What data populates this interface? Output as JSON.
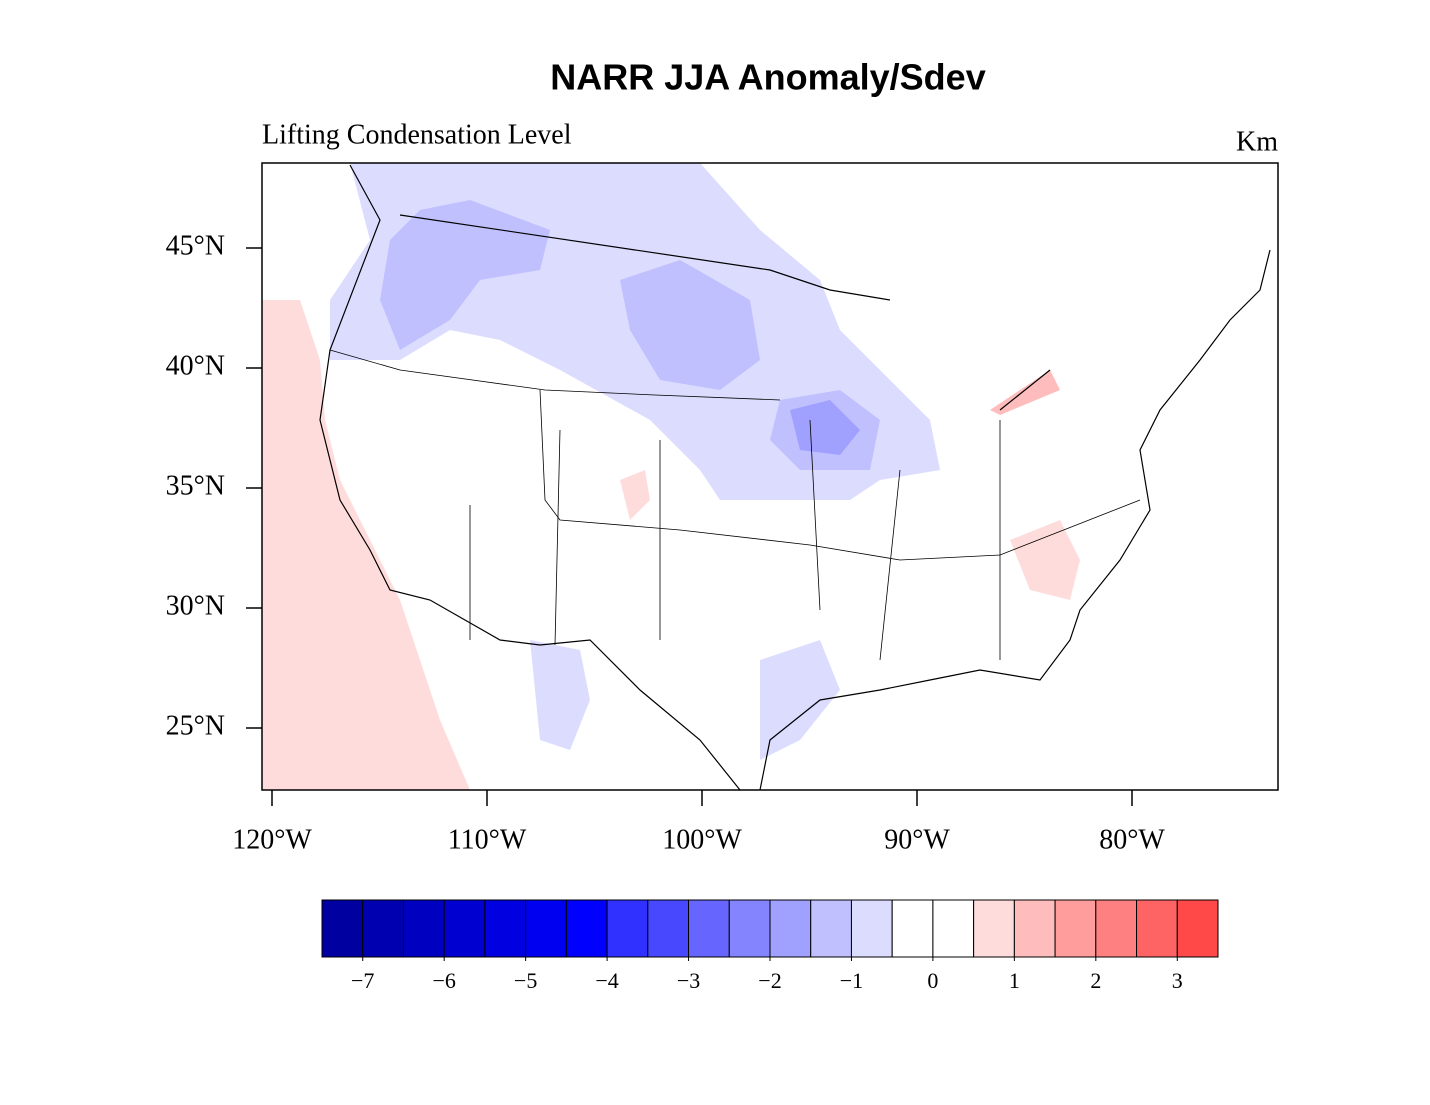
{
  "title": "NARR JJA Anomaly/Sdev",
  "subtitle": "Lifting Condensation Level",
  "units": "Km",
  "lat_ticks": [
    {
      "value": 45,
      "label": "45°N"
    },
    {
      "value": 40,
      "label": "40°N"
    },
    {
      "value": 35,
      "label": "35°N"
    },
    {
      "value": 30,
      "label": "30°N"
    },
    {
      "value": 25,
      "label": "25°N"
    }
  ],
  "lon_ticks": [
    {
      "value": -120,
      "label": "120°W"
    },
    {
      "value": -110,
      "label": "110°W"
    },
    {
      "value": -100,
      "label": "100°W"
    },
    {
      "value": -90,
      "label": "90°W"
    },
    {
      "value": -80,
      "label": "80°W"
    }
  ],
  "colorbar": {
    "lim": [
      -7.5,
      3.5
    ],
    "colors": [
      "#0000a0",
      "#0000b0",
      "#0000c0",
      "#0000d0",
      "#0000e0",
      "#0000f0",
      "#0000ff",
      "#3030ff",
      "#4848ff",
      "#6666ff",
      "#8484ff",
      "#a0a0ff",
      "#c0c0ff",
      "#dcdcff",
      "#ffffff",
      "#ffffff",
      "#ffdcdc",
      "#ffbcbc",
      "#ff9c9c",
      "#ff8080",
      "#ff6464",
      "#ff4848"
    ],
    "ticks": [
      {
        "value": -7,
        "label": "−7"
      },
      {
        "value": -6,
        "label": "−6"
      },
      {
        "value": -5,
        "label": "−5"
      },
      {
        "value": -4,
        "label": "−4"
      },
      {
        "value": -3,
        "label": "−3"
      },
      {
        "value": -2,
        "label": "−2"
      },
      {
        "value": -1,
        "label": "−1"
      },
      0,
      1,
      2,
      3
    ]
  }
}
